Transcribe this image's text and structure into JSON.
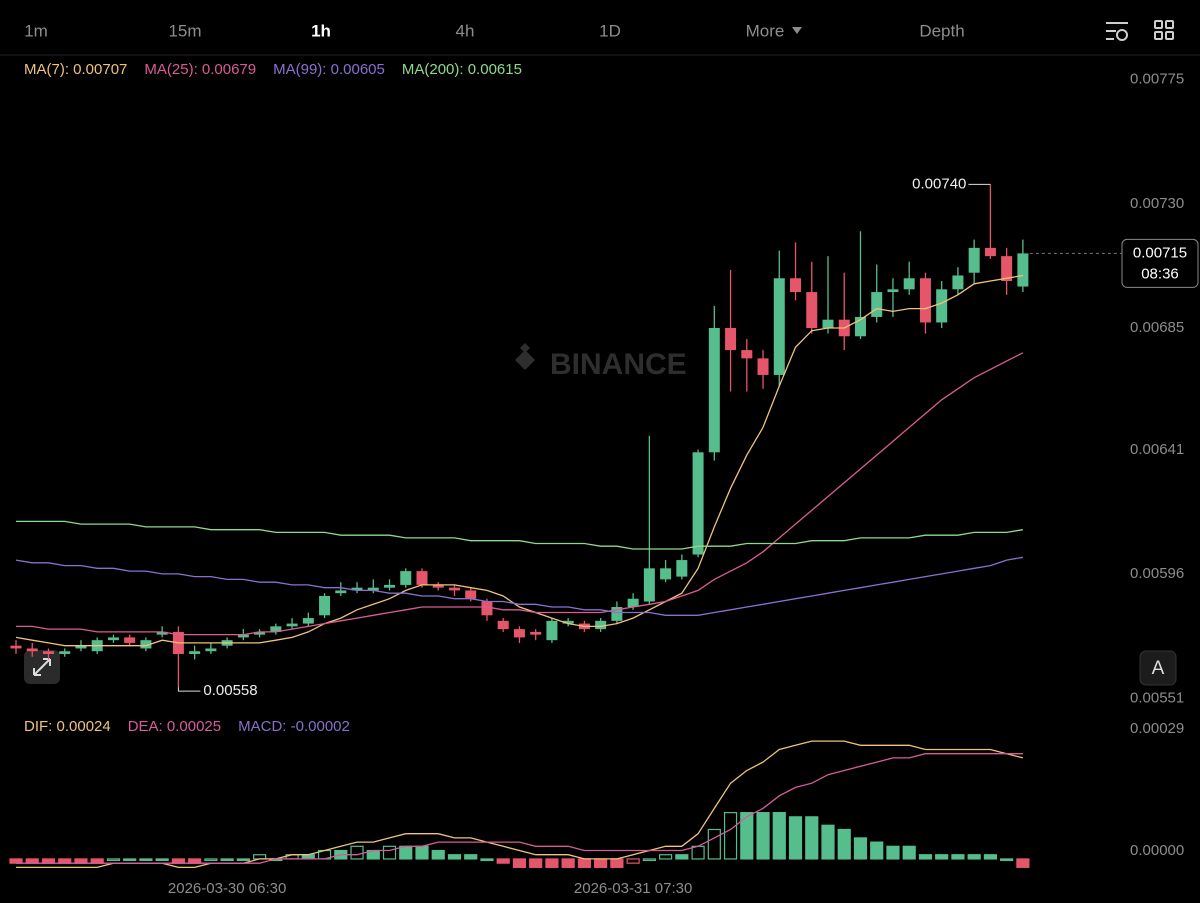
{
  "toolbar": {
    "intervals": [
      "1m",
      "15m",
      "1h",
      "4h",
      "1D"
    ],
    "active": 2,
    "more": "More",
    "depth": "Depth"
  },
  "watermark": "BINANCE",
  "auto_button": "A",
  "chart_data": [
    {
      "type": "candlestick",
      "categories": [
        null,
        null,
        null,
        null,
        null,
        null,
        null,
        null,
        null,
        null,
        null,
        null,
        null,
        "2026-03-30 06:30",
        null,
        null,
        null,
        null,
        null,
        null,
        null,
        null,
        null,
        null,
        null,
        null,
        null,
        null,
        null,
        null,
        null,
        null,
        null,
        null,
        null,
        null,
        null,
        null,
        "2026-03-31 07:30",
        null,
        null,
        null,
        null,
        null,
        null,
        null,
        null,
        null,
        null,
        null,
        null,
        null,
        null,
        null,
        null,
        null,
        null,
        null,
        null,
        null,
        null,
        null,
        null
      ],
      "open": [
        0.00573,
        0.00572,
        0.00571,
        0.0057,
        0.00572,
        0.00571,
        0.00575,
        0.00576,
        0.00572,
        0.00577,
        0.00578,
        0.0057,
        0.00571,
        0.00573,
        0.00576,
        0.00577,
        0.00578,
        0.0058,
        0.00581,
        0.00584,
        0.00592,
        0.00593,
        0.00593,
        0.00594,
        0.00595,
        0.006,
        0.00595,
        0.00594,
        0.00593,
        0.00589,
        0.00582,
        0.00579,
        0.00578,
        0.00575,
        0.00581,
        0.00581,
        0.00579,
        0.00582,
        0.00587,
        0.00589,
        0.00597,
        0.00598,
        0.00606,
        0.00643,
        0.00688,
        0.0068,
        0.00677,
        0.00671,
        0.00706,
        0.00701,
        0.00688,
        0.00691,
        0.00685,
        0.00692,
        0.00701,
        0.00702,
        0.00706,
        0.0069,
        0.00702,
        0.00708,
        0.00717,
        0.00714,
        0.00703
      ],
      "high": [
        0.00575,
        0.00574,
        0.00572,
        0.00572,
        0.00575,
        0.00576,
        0.00577,
        0.00577,
        0.00576,
        0.0058,
        0.0058,
        0.00573,
        0.00574,
        0.00576,
        0.00579,
        0.00579,
        0.00581,
        0.00583,
        0.00585,
        0.00592,
        0.00596,
        0.00596,
        0.00597,
        0.00597,
        0.00601,
        0.00601,
        0.00596,
        0.00595,
        0.00594,
        0.0059,
        0.00583,
        0.0058,
        0.00579,
        0.00583,
        0.00583,
        0.00582,
        0.00583,
        0.00589,
        0.00592,
        0.00649,
        0.00604,
        0.00606,
        0.00644,
        0.00696,
        0.00709,
        0.00684,
        0.0068,
        0.00716,
        0.00719,
        0.00712,
        0.00714,
        0.00708,
        0.00723,
        0.00711,
        0.00706,
        0.00712,
        0.00708,
        0.00705,
        0.0071,
        0.0072,
        0.0074,
        0.00717,
        0.0072
      ],
      "low": [
        0.0057,
        0.00569,
        0.00568,
        0.00569,
        0.00571,
        0.0057,
        0.00574,
        0.00573,
        0.00571,
        0.00576,
        0.00558,
        0.00568,
        0.0057,
        0.00572,
        0.00575,
        0.00576,
        0.00577,
        0.00579,
        0.0058,
        0.00583,
        0.00591,
        0.00592,
        0.00592,
        0.00593,
        0.00594,
        0.00594,
        0.00593,
        0.00591,
        0.00589,
        0.00582,
        0.00578,
        0.00574,
        0.00575,
        0.00574,
        0.0058,
        0.00578,
        0.00578,
        0.00581,
        0.00586,
        0.00588,
        0.00596,
        0.00597,
        0.00605,
        0.0064,
        0.00665,
        0.00665,
        0.00666,
        0.00667,
        0.00698,
        0.00686,
        0.00686,
        0.0068,
        0.00684,
        0.0069,
        0.00692,
        0.007,
        0.00686,
        0.00688,
        0.007,
        0.00704,
        0.00713,
        0.007,
        0.00701
      ],
      "close": [
        0.00572,
        0.00571,
        0.0057,
        0.00571,
        0.00573,
        0.00575,
        0.00576,
        0.00574,
        0.00575,
        0.00578,
        0.0057,
        0.00571,
        0.00572,
        0.00575,
        0.00577,
        0.00578,
        0.0058,
        0.00581,
        0.00583,
        0.00591,
        0.00593,
        0.00594,
        0.00594,
        0.00595,
        0.006,
        0.00595,
        0.00594,
        0.00593,
        0.0059,
        0.00584,
        0.00579,
        0.00576,
        0.00577,
        0.00582,
        0.00582,
        0.00579,
        0.00582,
        0.00587,
        0.0059,
        0.00601,
        0.00601,
        0.00604,
        0.00643,
        0.00688,
        0.0068,
        0.00677,
        0.00671,
        0.00706,
        0.00701,
        0.00688,
        0.00691,
        0.00685,
        0.00692,
        0.00701,
        0.00702,
        0.00706,
        0.0069,
        0.00702,
        0.00707,
        0.00717,
        0.00714,
        0.00705,
        0.00715
      ],
      "up_color": "#56bd8d",
      "down_color": "#e6566b",
      "ylim": [
        0.00549,
        0.00785
      ],
      "yticks": [
        0.00775,
        {
          "value": 0.0073,
          "label": "0.00730"
        },
        0.00685,
        0.00641,
        0.00596,
        0.00551
      ],
      "annotations": {
        "high_label": "0.00740",
        "low_label": "0.00558"
      },
      "last_price_label": "0.00715",
      "countdown": "08:36",
      "series": [
        {
          "name": "MA(7): 0.00707",
          "color": "#f0c27b",
          "values": [
            0.00576,
            0.00575,
            0.00574,
            0.00573,
            0.00573,
            0.00573,
            0.00573,
            0.00573,
            0.00573,
            0.00575,
            0.00574,
            0.00574,
            0.00574,
            0.00574,
            0.00574,
            0.00574,
            0.00575,
            0.00576,
            0.00578,
            0.00581,
            0.00583,
            0.00586,
            0.00588,
            0.0059,
            0.00593,
            0.00595,
            0.00595,
            0.00595,
            0.00594,
            0.00593,
            0.00591,
            0.00587,
            0.00585,
            0.00583,
            0.00581,
            0.0058,
            0.0058,
            0.00581,
            0.00583,
            0.00586,
            0.00589,
            0.00592,
            0.00601,
            0.00616,
            0.0063,
            0.00642,
            0.00652,
            0.00667,
            0.00681,
            0.00687,
            0.00688,
            0.00688,
            0.00691,
            0.00695,
            0.00694,
            0.00695,
            0.00695,
            0.00697,
            0.007,
            0.00704,
            0.00705,
            0.00706,
            0.00707
          ]
        },
        {
          "name": "MA(25): 0.00679",
          "color": "#d95d93",
          "values": [
            0.0058,
            0.0058,
            0.00579,
            0.00579,
            0.00579,
            0.00578,
            0.00578,
            0.00578,
            0.00578,
            0.00578,
            0.00577,
            0.00577,
            0.00577,
            0.00577,
            0.00577,
            0.00578,
            0.00578,
            0.00579,
            0.0058,
            0.00581,
            0.00582,
            0.00583,
            0.00584,
            0.00585,
            0.00586,
            0.00587,
            0.00587,
            0.00587,
            0.00587,
            0.00587,
            0.00586,
            0.00586,
            0.00585,
            0.00585,
            0.00585,
            0.00585,
            0.00585,
            0.00586,
            0.00587,
            0.00588,
            0.00589,
            0.00591,
            0.00593,
            0.00597,
            0.006,
            0.00603,
            0.00607,
            0.00612,
            0.00617,
            0.00622,
            0.00627,
            0.00632,
            0.00637,
            0.00642,
            0.00647,
            0.00652,
            0.00657,
            0.00662,
            0.00666,
            0.0067,
            0.00673,
            0.00676,
            0.00679
          ]
        },
        {
          "name": "MA(99): 0.00605",
          "color": "#8a6fd1",
          "values": [
            0.00604,
            0.00603,
            0.00603,
            0.00602,
            0.00602,
            0.00601,
            0.00601,
            0.006,
            0.006,
            0.00599,
            0.00599,
            0.00598,
            0.00598,
            0.00597,
            0.00597,
            0.00596,
            0.00596,
            0.00595,
            0.00595,
            0.00594,
            0.00594,
            0.00593,
            0.00593,
            0.00592,
            0.00592,
            0.00591,
            0.00591,
            0.0059,
            0.0059,
            0.00589,
            0.00589,
            0.00588,
            0.00588,
            0.00587,
            0.00587,
            0.00586,
            0.00586,
            0.00585,
            0.00585,
            0.00585,
            0.00584,
            0.00584,
            0.00584,
            0.00585,
            0.00586,
            0.00587,
            0.00588,
            0.00589,
            0.0059,
            0.00591,
            0.00592,
            0.00593,
            0.00594,
            0.00595,
            0.00596,
            0.00597,
            0.00598,
            0.00599,
            0.006,
            0.00601,
            0.00602,
            0.00604,
            0.00605
          ]
        },
        {
          "name": "MA(200): 0.00615",
          "color": "#8fd98a",
          "values": [
            0.00618,
            0.00618,
            0.00618,
            0.00618,
            0.00617,
            0.00617,
            0.00617,
            0.00617,
            0.00616,
            0.00616,
            0.00616,
            0.00616,
            0.00615,
            0.00615,
            0.00615,
            0.00615,
            0.00614,
            0.00614,
            0.00614,
            0.00614,
            0.00613,
            0.00613,
            0.00613,
            0.00613,
            0.00612,
            0.00612,
            0.00612,
            0.00612,
            0.00611,
            0.00611,
            0.00611,
            0.00611,
            0.0061,
            0.0061,
            0.0061,
            0.0061,
            0.00609,
            0.00609,
            0.00608,
            0.00608,
            0.00608,
            0.00608,
            0.00609,
            0.00609,
            0.00609,
            0.0061,
            0.0061,
            0.0061,
            0.0061,
            0.00611,
            0.00611,
            0.00611,
            0.00612,
            0.00612,
            0.00612,
            0.00612,
            0.00613,
            0.00613,
            0.00613,
            0.00614,
            0.00614,
            0.00614,
            0.00615
          ]
        }
      ]
    },
    {
      "type": "macd",
      "ylim": [
        -5e-05,
        0.00033
      ],
      "yticks": [
        0.00029,
        {
          "value": 0,
          "label": "0.00000"
        }
      ],
      "up_color": "#56bd8d",
      "down_color": "#e6566b",
      "series": [
        {
          "name": "DIF: 0.00024",
          "color": "#f0c27b",
          "kind": "line",
          "values": [
            -2e-05,
            -2e-05,
            -2e-05,
            -2e-05,
            -2e-05,
            -2e-05,
            -1e-05,
            -1e-05,
            -1e-05,
            -1e-05,
            -2e-05,
            -2e-05,
            -1e-05,
            -1e-05,
            -1e-05,
            0,
            0,
            1e-05,
            1e-05,
            2e-05,
            3e-05,
            4e-05,
            4e-05,
            5e-05,
            6e-05,
            6e-05,
            6e-05,
            5e-05,
            5e-05,
            4e-05,
            3e-05,
            2e-05,
            1e-05,
            1e-05,
            1e-05,
            0,
            0,
            0,
            1e-05,
            2e-05,
            3e-05,
            3e-05,
            6e-05,
            0.00012,
            0.00018,
            0.00021,
            0.00023,
            0.00026,
            0.00027,
            0.00028,
            0.00028,
            0.00028,
            0.00027,
            0.00027,
            0.00027,
            0.00027,
            0.00026,
            0.00026,
            0.00026,
            0.00026,
            0.00026,
            0.00025,
            0.00024
          ]
        },
        {
          "name": "DEA: 0.00025",
          "color": "#d65d9c",
          "kind": "line",
          "values": [
            -1e-05,
            -1e-05,
            -1e-05,
            -1e-05,
            -1e-05,
            -1e-05,
            -1e-05,
            -1e-05,
            -1e-05,
            -1e-05,
            -1e-05,
            -1e-05,
            -1e-05,
            -1e-05,
            -1e-05,
            -1e-05,
            0,
            0,
            0,
            0,
            1e-05,
            1e-05,
            2e-05,
            2e-05,
            3e-05,
            3e-05,
            4e-05,
            4e-05,
            4e-05,
            4e-05,
            4e-05,
            4e-05,
            3e-05,
            3e-05,
            3e-05,
            2e-05,
            2e-05,
            2e-05,
            2e-05,
            2e-05,
            2e-05,
            2e-05,
            3e-05,
            5e-05,
            7e-05,
            0.0001,
            0.00012,
            0.00015,
            0.00017,
            0.00018,
            0.0002,
            0.00021,
            0.00022,
            0.00023,
            0.00024,
            0.00024,
            0.00025,
            0.00025,
            0.00025,
            0.00025,
            0.00025,
            0.00025,
            0.00025
          ]
        },
        {
          "name": "MACD: -0.00002",
          "color": "#8870c9",
          "kind": "histogram",
          "values": [
            -1e-05,
            -1e-05,
            -1e-05,
            -1e-05,
            -1e-05,
            -1e-05,
            0,
            0,
            0,
            0,
            -1e-05,
            -1e-05,
            0,
            0,
            0,
            1e-05,
            0,
            1e-05,
            1e-05,
            2e-05,
            2e-05,
            3e-05,
            2e-05,
            3e-05,
            3e-05,
            3e-05,
            2e-05,
            1e-05,
            1e-05,
            0,
            -1e-05,
            -2e-05,
            -2e-05,
            -2e-05,
            -2e-05,
            -2e-05,
            -2e-05,
            -2e-05,
            -1e-05,
            0,
            1e-05,
            1e-05,
            3e-05,
            7e-05,
            0.00011,
            0.00011,
            0.00011,
            0.00011,
            0.0001,
            0.0001,
            8e-05,
            7e-05,
            5e-05,
            4e-05,
            3e-05,
            3e-05,
            1e-05,
            1e-05,
            1e-05,
            1e-05,
            1e-05,
            0,
            -2e-05
          ]
        }
      ]
    }
  ]
}
